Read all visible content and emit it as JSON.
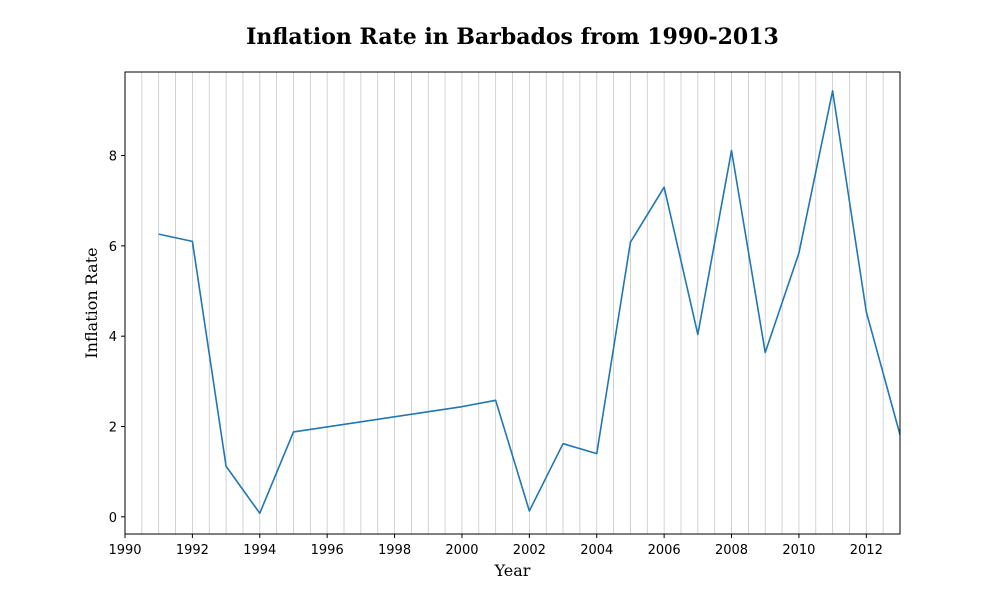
{
  "chart_data": {
    "type": "line",
    "title": "Inflation Rate in Barbados from 1990-2013",
    "xlabel": "Year",
    "ylabel": "Inflation Rate",
    "xlim": [
      1990,
      2013
    ],
    "ylim": [
      -0.38,
      9.85
    ],
    "x_ticks": [
      1990,
      1992,
      1994,
      1996,
      1998,
      2000,
      2002,
      2004,
      2006,
      2008,
      2010,
      2012
    ],
    "y_ticks": [
      0,
      2,
      4,
      6,
      8
    ],
    "x_grid": "vertical lines at every 0.5 year",
    "grid_step": 0.5,
    "legend": "none",
    "series": [
      {
        "color": "#1f77b4",
        "points": [
          [
            1991,
            6.26
          ],
          [
            1992,
            6.1
          ],
          [
            1993,
            1.12
          ],
          [
            1994,
            0.08
          ],
          [
            1995,
            1.88
          ],
          [
            2000,
            2.44
          ],
          [
            2001,
            2.58
          ],
          [
            2002,
            0.13
          ],
          [
            2003,
            1.62
          ],
          [
            2004,
            1.4
          ],
          [
            2005,
            6.08
          ],
          [
            2006,
            7.3
          ],
          [
            2007,
            4.04
          ],
          [
            2008,
            8.11
          ],
          [
            2009,
            3.64
          ],
          [
            2010,
            5.84
          ],
          [
            2011,
            9.43
          ],
          [
            2012,
            4.54
          ],
          [
            2013,
            1.82
          ]
        ]
      }
    ]
  }
}
